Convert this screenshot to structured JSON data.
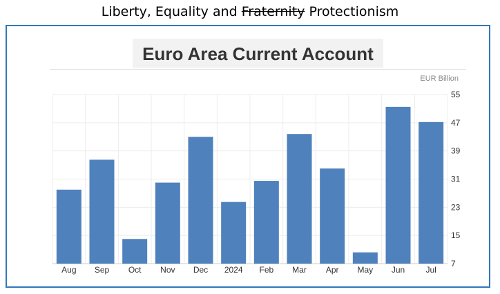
{
  "header": {
    "prefix": "Liberty, Equality and",
    "struck": "Fraternity",
    "suffix": "Protectionism"
  },
  "chart_data": {
    "type": "bar",
    "title": "Euro Area Current Account",
    "unit": "EUR Billion",
    "categories": [
      "Aug",
      "Sep",
      "Oct",
      "Nov",
      "Dec",
      "2024",
      "Feb",
      "Mar",
      "Apr",
      "May",
      "Jun",
      "Jul"
    ],
    "values": [
      28,
      36.5,
      14,
      30,
      43,
      24.5,
      30.5,
      43.8,
      34,
      10.2,
      51.5,
      47.2
    ],
    "ylim": [
      7,
      55
    ],
    "yticks": [
      7,
      15,
      23,
      31,
      39,
      47,
      55
    ],
    "grid": true,
    "color": "#4f81bd"
  }
}
